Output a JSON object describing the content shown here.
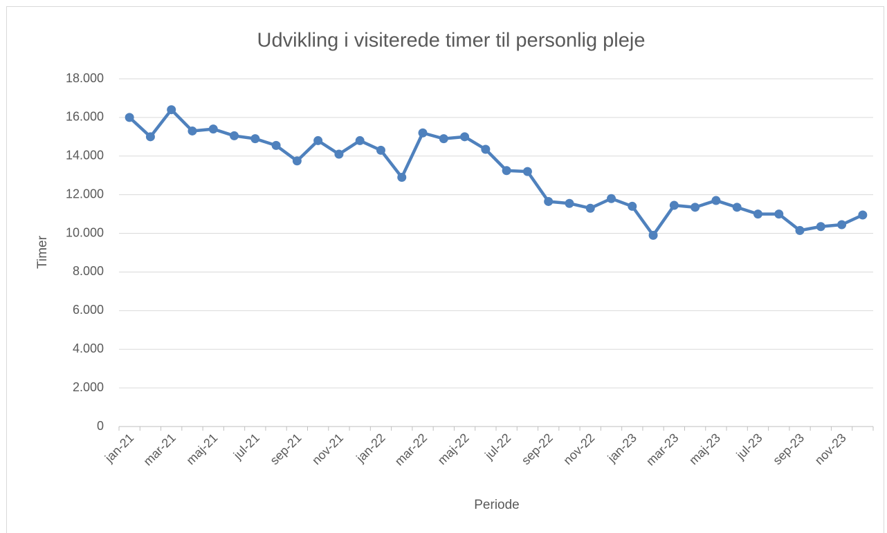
{
  "chart_data": {
    "type": "line",
    "title": "Udvikling i visiterede timer til personlig pleje",
    "y_label": "Timer",
    "x_label": "Periode",
    "categories": [
      "jan-21",
      null,
      "mar-21",
      null,
      "maj-21",
      null,
      "jul-21",
      null,
      "sep-21",
      null,
      "nov-21",
      null,
      "jan-22",
      null,
      "mar-22",
      null,
      "maj-22",
      null,
      "jul-22",
      null,
      "sep-22",
      null,
      "nov-22",
      null,
      "jan-23",
      null,
      "mar-23",
      null,
      "maj-23",
      null,
      "jul-23",
      null,
      "sep-23",
      null,
      "nov-23",
      null
    ],
    "series": [
      {
        "name": "Timer",
        "color": "#4f81bd",
        "values": [
          16000,
          15000,
          16400,
          15300,
          15400,
          15050,
          14900,
          14550,
          13750,
          14800,
          14100,
          14800,
          14300,
          12900,
          15200,
          14900,
          15000,
          14350,
          13250,
          13200,
          11650,
          11550,
          11300,
          11800,
          11400,
          9900,
          11450,
          11350,
          11700,
          11350,
          11000,
          11000,
          10150,
          10350,
          10450,
          10950
        ]
      }
    ],
    "ylim": [
      0,
      18000
    ],
    "yticks": [
      0,
      {
        "value": 2000,
        "label": "2.000"
      },
      {
        "value": 4000,
        "label": "4.000"
      },
      {
        "value": 6000,
        "label": "6.000"
      },
      {
        "value": 8000,
        "label": "8.000"
      },
      {
        "value": 10000,
        "label": "10.000"
      },
      {
        "value": 12000,
        "label": "12.000"
      },
      {
        "value": 14000,
        "label": "14.000"
      },
      {
        "value": 16000,
        "label": "16.000"
      },
      {
        "value": 18000,
        "label": "18.000"
      }
    ],
    "grid": true
  }
}
